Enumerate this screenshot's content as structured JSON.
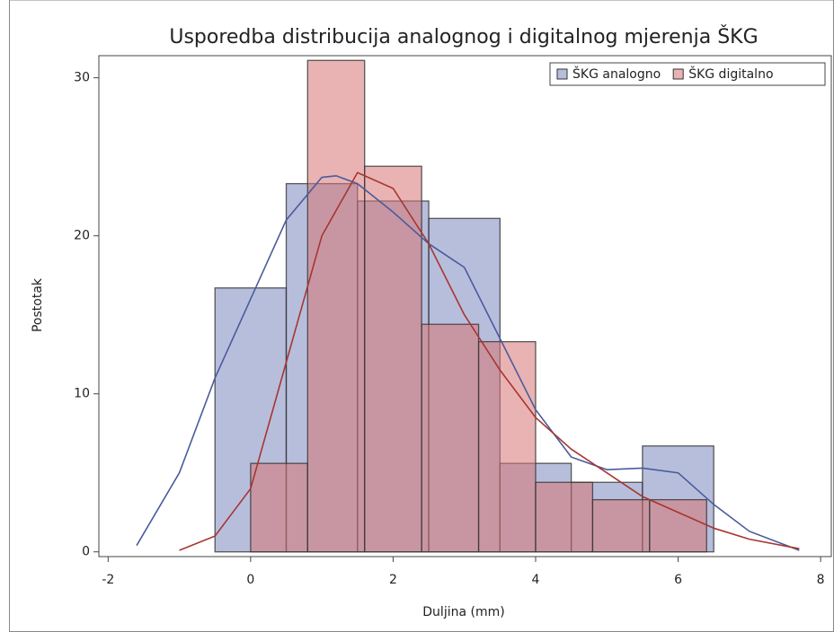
{
  "chart_data": {
    "type": "histogram",
    "title": "Usporedba distribucija analognog i digitalnog mjerenja ŠKG",
    "xlabel": "Duljina (mm)",
    "ylabel": "Postotak",
    "xlim": [
      -2.13,
      8.15
    ],
    "ylim": [
      -0.3,
      31.4
    ],
    "xticks": [
      -2,
      0,
      2,
      4,
      6,
      8
    ],
    "yticks": [
      0,
      10,
      20,
      30
    ],
    "legend": "top-right",
    "series": [
      {
        "name": "ŠKG analogno",
        "color": "#7b89bf",
        "line_color": "#4b5b9c",
        "bins": [
          -0.5,
          0.5,
          1.5,
          2.5,
          3.5,
          4.5,
          5.5,
          6.5
        ],
        "values": [
          16.7,
          23.3,
          22.2,
          21.1,
          5.6,
          4.4,
          6.7
        ],
        "kde_x": [
          -1.6,
          -1,
          -0.5,
          0,
          0.5,
          1,
          1.2,
          1.5,
          2,
          2.5,
          3,
          3.5,
          4,
          4.5,
          5,
          5.5,
          6,
          6.5,
          7,
          7.7
        ],
        "kde_y": [
          0.4,
          5,
          11,
          16,
          21,
          23.7,
          23.8,
          23.3,
          21.5,
          19.5,
          18,
          13.5,
          9,
          6,
          5.2,
          5.3,
          5,
          3,
          1.3,
          0.1
        ]
      },
      {
        "name": "ŠKG digitalno",
        "color": "#d77474",
        "line_color": "#a8352f",
        "bins": [
          0,
          0.8,
          1.6,
          2.4,
          3.2,
          4.0,
          4.8,
          5.6,
          6.4
        ],
        "values": [
          5.6,
          31.1,
          24.4,
          14.4,
          13.3,
          4.4,
          3.3,
          3.3
        ],
        "kde_x": [
          -1,
          -0.5,
          0,
          0.5,
          1,
          1.5,
          2,
          2.5,
          3,
          3.5,
          4,
          4.5,
          5,
          5.5,
          6,
          6.5,
          7,
          7.7
        ],
        "kde_y": [
          0.1,
          1,
          4,
          12,
          20,
          24,
          23,
          19.5,
          15,
          11.5,
          8.5,
          6.5,
          5,
          3.5,
          2.5,
          1.5,
          0.8,
          0.2
        ]
      }
    ]
  }
}
